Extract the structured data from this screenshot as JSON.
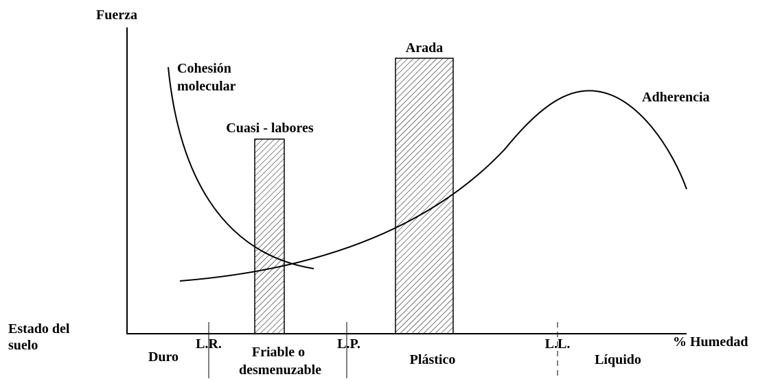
{
  "y_axis_label": "Fuerza",
  "x_axis_label": "% Humedad",
  "row_label": [
    "Estado del",
    "suelo"
  ],
  "curves": [
    {
      "label": [
        "Cohesión",
        "molecular"
      ]
    },
    {
      "label": [
        "Adherencia"
      ]
    }
  ],
  "bars": [
    {
      "label": "Cuasi - labores"
    },
    {
      "label": "Arada"
    }
  ],
  "limits": [
    "L.R.",
    "L.P.",
    "L.L."
  ],
  "states": [
    {
      "label": [
        "Duro"
      ]
    },
    {
      "label": [
        "Friable o",
        "desmenuzable"
      ]
    },
    {
      "label": [
        "Plástico"
      ]
    },
    {
      "label": [
        "Líquido"
      ]
    }
  ]
}
